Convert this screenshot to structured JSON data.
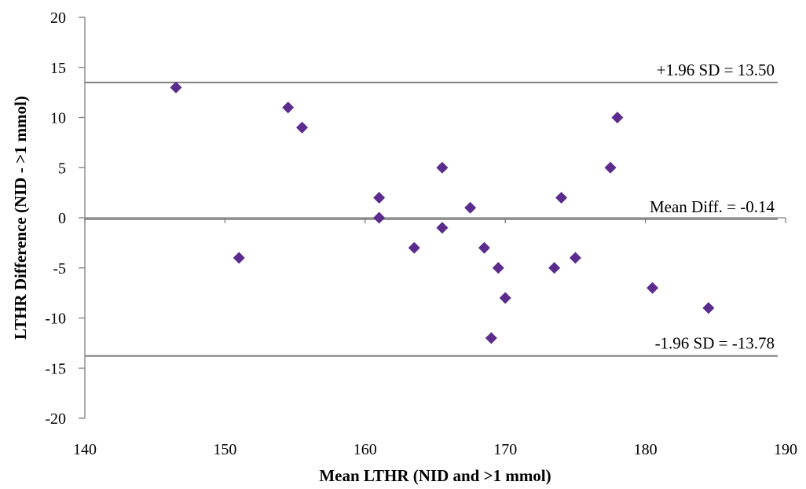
{
  "chart_data": {
    "type": "scatter",
    "title": "",
    "xlabel": "Mean LTHR (NID and >1 mmol)",
    "ylabel": "LTHR Difference (NID - >1 mmol)",
    "xlim": [
      140,
      190
    ],
    "ylim": [
      -20,
      20
    ],
    "xticks": [
      140,
      150,
      160,
      170,
      180,
      190
    ],
    "yticks": [
      -20,
      -15,
      -10,
      -5,
      0,
      5,
      10,
      15,
      20
    ],
    "grid": false,
    "legend": "none",
    "marker_color": "#5b2c8e",
    "reference_lines": [
      {
        "name": "upper-loa",
        "y": 13.5,
        "label": "+1.96 SD = 13.50"
      },
      {
        "name": "mean-diff",
        "y": -0.14,
        "label": "Mean Diff. = -0.14"
      },
      {
        "name": "lower-loa",
        "y": -13.78,
        "label": "-1.96 SD = -13.78"
      }
    ],
    "points": [
      {
        "x": 146.5,
        "y": 13
      },
      {
        "x": 151,
        "y": -4
      },
      {
        "x": 154.5,
        "y": 11
      },
      {
        "x": 155.5,
        "y": 9
      },
      {
        "x": 161,
        "y": 2
      },
      {
        "x": 161,
        "y": 0
      },
      {
        "x": 163.5,
        "y": -3
      },
      {
        "x": 165.5,
        "y": 5
      },
      {
        "x": 165.5,
        "y": -1
      },
      {
        "x": 167.5,
        "y": 1
      },
      {
        "x": 168.5,
        "y": -3
      },
      {
        "x": 169,
        "y": -12
      },
      {
        "x": 169.5,
        "y": -5
      },
      {
        "x": 170,
        "y": -8
      },
      {
        "x": 173.5,
        "y": -5
      },
      {
        "x": 174,
        "y": 2
      },
      {
        "x": 175,
        "y": -4
      },
      {
        "x": 177.5,
        "y": 5
      },
      {
        "x": 178,
        "y": 10
      },
      {
        "x": 180.5,
        "y": -7
      },
      {
        "x": 184.5,
        "y": -9
      }
    ]
  }
}
